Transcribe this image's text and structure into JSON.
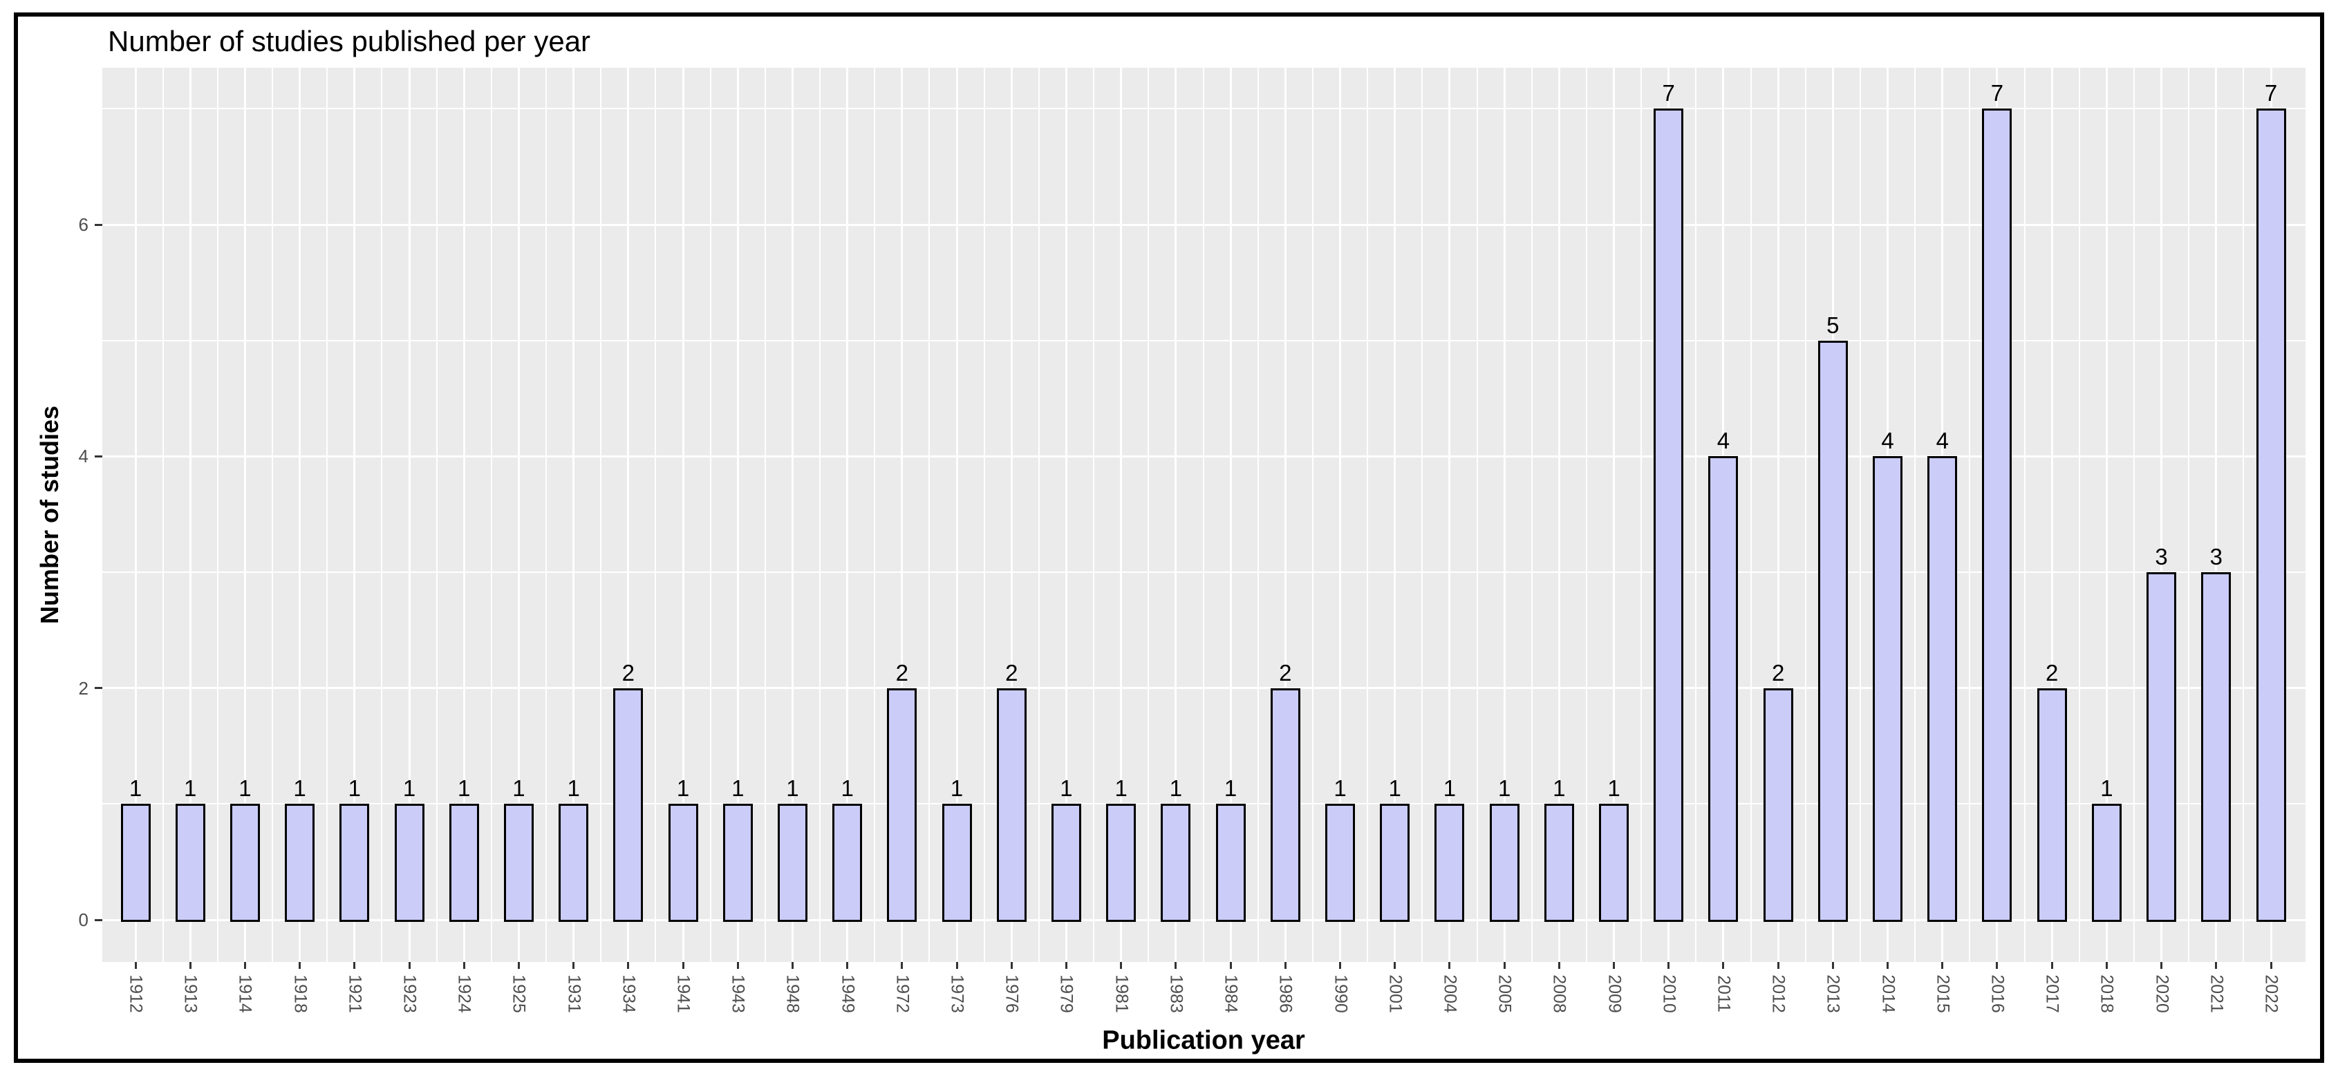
{
  "chart_data": {
    "type": "bar",
    "title": "Number of studies published per year",
    "xlabel": "Publication year",
    "ylabel": "Number of studies",
    "categories": [
      "1912",
      "1913",
      "1914",
      "1918",
      "1921",
      "1923",
      "1924",
      "1925",
      "1931",
      "1934",
      "1941",
      "1943",
      "1948",
      "1949",
      "1972",
      "1973",
      "1976",
      "1979",
      "1981",
      "1983",
      "1984",
      "1986",
      "1990",
      "2001",
      "2004",
      "2005",
      "2008",
      "2009",
      "2010",
      "2011",
      "2012",
      "2013",
      "2014",
      "2015",
      "2016",
      "2017",
      "2018",
      "2020",
      "2021",
      "2022"
    ],
    "values": [
      1,
      1,
      1,
      1,
      1,
      1,
      1,
      1,
      1,
      2,
      1,
      1,
      1,
      1,
      2,
      1,
      2,
      1,
      1,
      1,
      1,
      2,
      1,
      1,
      1,
      1,
      1,
      1,
      7,
      4,
      2,
      5,
      4,
      4,
      7,
      2,
      1,
      3,
      3,
      7
    ],
    "bar_value_labels": [
      1,
      1,
      1,
      1,
      1,
      1,
      1,
      1,
      1,
      2,
      1,
      1,
      1,
      1,
      2,
      1,
      2,
      1,
      1,
      1,
      1,
      2,
      1,
      1,
      1,
      1,
      1,
      1,
      7,
      4,
      2,
      5,
      4,
      4,
      7,
      2,
      1,
      3,
      3,
      7
    ],
    "y_ticks": [
      0,
      2,
      4,
      6
    ],
    "y_minor_ticks": [
      1,
      3,
      5,
      7
    ],
    "ylim": [
      0,
      7.36
    ],
    "grid": "white major and minor gridlines on gray panel",
    "legend": "none",
    "colors": {
      "bar_fill": "#CBCDF8",
      "bar_border": "#000000",
      "panel_bg": "#EBEBEB",
      "grid": "#FFFFFF",
      "tick_label": "#4D4D4D",
      "axis_title": "#000000",
      "title": "#000000",
      "tick_mark": "#333333",
      "frame_border": "#000000",
      "page_bg": "#FFFFFF"
    }
  }
}
